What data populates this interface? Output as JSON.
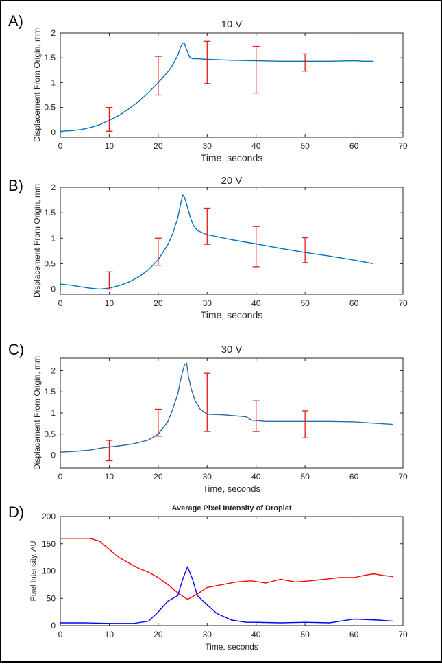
{
  "chart_data": [
    {
      "panel": "A)",
      "type": "line",
      "title": "10 V",
      "xlabel": "Time, seconds",
      "ylabel": "Displacement From Origin, mm",
      "xlim": [
        0,
        70
      ],
      "ylim": [
        -0.1,
        2
      ],
      "xticks": [
        "0",
        "10",
        "20",
        "30",
        "40",
        "50",
        "60",
        "70"
      ],
      "yticks": [
        "0",
        "0.5",
        "1",
        "1.5",
        "2"
      ],
      "line_color": "#0072BD",
      "error_color": "#E8191A",
      "series": [
        {
          "name": "displacement",
          "x": [
            0,
            2,
            4,
            6,
            8,
            10,
            12,
            14,
            16,
            18,
            20,
            22,
            23,
            24,
            24.6,
            25,
            25.4,
            25.8,
            26.4,
            27,
            28,
            30,
            35,
            40,
            45,
            50,
            55,
            60,
            62,
            64
          ],
          "y": [
            0.02,
            0.03,
            0.05,
            0.09,
            0.15,
            0.24,
            0.34,
            0.47,
            0.62,
            0.8,
            1.0,
            1.22,
            1.36,
            1.55,
            1.72,
            1.8,
            1.78,
            1.66,
            1.52,
            1.48,
            1.48,
            1.47,
            1.45,
            1.44,
            1.43,
            1.43,
            1.43,
            1.44,
            1.43,
            1.43
          ]
        }
      ],
      "error_bars": [
        {
          "x": 10,
          "lo": 0.02,
          "hi": 0.5
        },
        {
          "x": 20,
          "lo": 0.75,
          "hi": 1.53
        },
        {
          "x": 30,
          "lo": 0.98,
          "hi": 1.83
        },
        {
          "x": 40,
          "lo": 0.79,
          "hi": 1.73
        },
        {
          "x": 50,
          "lo": 1.23,
          "hi": 1.58
        }
      ]
    },
    {
      "panel": "B)",
      "type": "line",
      "title": "20 V",
      "xlabel": "Time, seconds",
      "ylabel": "Displacement From Origin, mm",
      "xlim": [
        0,
        70
      ],
      "ylim": [
        -0.1,
        2
      ],
      "xticks": [
        "0",
        "10",
        "20",
        "30",
        "40",
        "50",
        "60",
        "70"
      ],
      "yticks": [
        "0",
        "0.5",
        "1",
        "1.5",
        "2"
      ],
      "line_color": "#0072BD",
      "error_color": "#E8191A",
      "series": [
        {
          "name": "displacement",
          "x": [
            0,
            2,
            4,
            6,
            8,
            10,
            12,
            14,
            16,
            18,
            20,
            22,
            23,
            24,
            24.6,
            25,
            25.4,
            26,
            26.6,
            27.2,
            28,
            30,
            35,
            40,
            45,
            50,
            55,
            60,
            64
          ],
          "y": [
            0.1,
            0.08,
            0.05,
            0.02,
            0.0,
            0.02,
            0.07,
            0.14,
            0.24,
            0.38,
            0.58,
            0.88,
            1.1,
            1.4,
            1.68,
            1.85,
            1.8,
            1.6,
            1.4,
            1.25,
            1.15,
            1.07,
            0.97,
            0.89,
            0.8,
            0.72,
            0.65,
            0.57,
            0.5
          ]
        }
      ],
      "error_bars": [
        {
          "x": 10,
          "lo": 0.0,
          "hi": 0.34
        },
        {
          "x": 20,
          "lo": 0.47,
          "hi": 1.0
        },
        {
          "x": 30,
          "lo": 0.88,
          "hi": 1.59
        },
        {
          "x": 40,
          "lo": 0.44,
          "hi": 1.23
        },
        {
          "x": 50,
          "lo": 0.52,
          "hi": 1.01
        }
      ]
    },
    {
      "panel": "C)",
      "type": "line",
      "title": "30 V",
      "xlabel": "Time, seconds",
      "ylabel": "Displacement From Origin, mm",
      "xlim": [
        0,
        70
      ],
      "ylim": [
        -0.3,
        2.3
      ],
      "xticks": [
        "0",
        "10",
        "20",
        "30",
        "40",
        "50",
        "60",
        "70"
      ],
      "yticks": [
        "0",
        "0.5",
        "1",
        "1.5",
        "2"
      ],
      "line_color": "#2B6CA3",
      "error_color": "#E8191A",
      "series": [
        {
          "name": "displacement",
          "x": [
            0,
            3,
            6,
            9,
            12,
            15,
            18,
            20,
            22,
            23,
            24,
            24.8,
            25.4,
            25.8,
            26.2,
            26.8,
            27.5,
            28.5,
            30,
            33,
            36,
            38,
            39,
            40,
            42,
            45,
            50,
            55,
            60,
            64,
            68
          ],
          "y": [
            0.07,
            0.09,
            0.12,
            0.18,
            0.22,
            0.27,
            0.36,
            0.5,
            0.8,
            1.1,
            1.45,
            1.9,
            2.15,
            2.18,
            1.85,
            1.55,
            1.3,
            1.1,
            0.97,
            0.96,
            0.93,
            0.91,
            0.83,
            0.82,
            0.8,
            0.8,
            0.8,
            0.8,
            0.79,
            0.76,
            0.73
          ]
        }
      ],
      "error_bars": [
        {
          "x": 10,
          "lo": -0.13,
          "hi": 0.35
        },
        {
          "x": 20,
          "lo": 0.45,
          "hi": 1.09
        },
        {
          "x": 30,
          "lo": 0.56,
          "hi": 1.94
        },
        {
          "x": 40,
          "lo": 0.56,
          "hi": 1.29
        },
        {
          "x": 50,
          "lo": 0.41,
          "hi": 1.05
        }
      ]
    },
    {
      "panel": "D)",
      "type": "line",
      "title": "Average Pixel Intensity of Droplet",
      "xlabel": "Time, seconds",
      "ylabel": "Pixel Intensity, AU",
      "xlim": [
        0,
        70
      ],
      "ylim": [
        0,
        200
      ],
      "xticks": [
        "0",
        "10",
        "20",
        "30",
        "40",
        "50",
        "60",
        "70"
      ],
      "yticks": [
        "0",
        "50",
        "100",
        "150",
        "200"
      ],
      "series": [
        {
          "name": "red",
          "color": "#FF0000",
          "x": [
            0,
            3,
            6,
            8,
            10,
            12,
            14,
            16,
            18,
            20,
            22,
            24,
            26,
            28,
            30,
            33,
            36,
            39,
            42,
            45,
            48,
            51,
            54,
            57,
            60,
            62,
            64,
            66,
            68
          ],
          "y": [
            160,
            160,
            160,
            155,
            140,
            125,
            115,
            105,
            98,
            88,
            75,
            60,
            48,
            58,
            70,
            75,
            80,
            82,
            78,
            85,
            80,
            82,
            85,
            88,
            88,
            92,
            95,
            92,
            90
          ]
        },
        {
          "name": "blue",
          "color": "#0000FF",
          "x": [
            0,
            5,
            10,
            15,
            18,
            20,
            22,
            24,
            25,
            26,
            27,
            28,
            30,
            32,
            35,
            38,
            40,
            45,
            50,
            55,
            60,
            65,
            68
          ],
          "y": [
            5,
            5,
            4,
            4,
            8,
            25,
            45,
            55,
            85,
            108,
            85,
            55,
            38,
            22,
            10,
            6,
            6,
            5,
            6,
            5,
            12,
            10,
            8
          ]
        }
      ]
    }
  ]
}
